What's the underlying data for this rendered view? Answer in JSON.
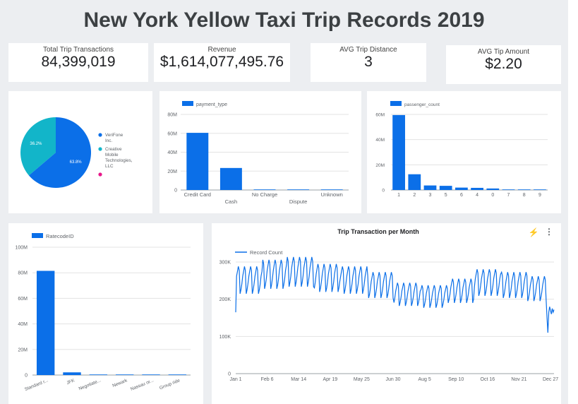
{
  "title": "New York Yellow Taxi Trip Records 2019",
  "kpis": [
    {
      "label": "Total Trip Transactions",
      "value": "84,399,019"
    },
    {
      "label": "Revenue",
      "value": "$1,614,077,495.76"
    },
    {
      "label": "AVG Trip Distance",
      "value": "3"
    },
    {
      "label": "AVG Tip Amount",
      "value": "$2.20"
    }
  ],
  "colors": {
    "blue": "#0b6fe8",
    "teal": "#12b5c9",
    "pink": "#e8178a",
    "grid": "#e3e3e3"
  },
  "chart_data": [
    {
      "type": "pie",
      "legend": "right",
      "slices": [
        {
          "name": "VeriFone Inc.",
          "value": 63.8,
          "label": "63.8%",
          "color": "#0b6fe8"
        },
        {
          "name": "Creative Mobile Technologies, LLC",
          "value": 36.2,
          "label": "36.2%",
          "color": "#12b5c9"
        },
        {
          "name": "",
          "value": 0,
          "label": "",
          "color": "#e8178a"
        }
      ]
    },
    {
      "type": "bar",
      "legend": "payment_type",
      "categories": [
        "Credit Card",
        "Cash",
        "No Charge",
        "Dispute",
        "Unknown"
      ],
      "values": [
        60500000,
        23300000,
        400000,
        150000,
        50000
      ],
      "ylim": [
        0,
        80000000
      ],
      "yticks": [
        {
          "v": 0,
          "label": "0"
        },
        {
          "v": 20000000,
          "label": "20M"
        },
        {
          "v": 40000000,
          "label": "40M"
        },
        {
          "v": 60000000,
          "label": "60M"
        },
        {
          "v": 80000000,
          "label": "80M"
        }
      ]
    },
    {
      "type": "bar",
      "legend": "passenger_count",
      "categories": [
        "1",
        "2",
        "3",
        "5",
        "6",
        "4",
        "0",
        "7",
        "8",
        "9"
      ],
      "values": [
        59500000,
        12500000,
        3600000,
        3300000,
        1900000,
        1700000,
        1200000,
        50000,
        30000,
        10000
      ],
      "ylim": [
        0,
        60000000
      ],
      "yticks": [
        {
          "v": 0,
          "label": "0"
        },
        {
          "v": 20000000,
          "label": "20M"
        },
        {
          "v": 40000000,
          "label": "40M"
        },
        {
          "v": 60000000,
          "label": "60M"
        }
      ]
    },
    {
      "type": "bar",
      "legend": "RatecodeID",
      "categories": [
        "Standard r...",
        "JFK",
        "Negotiate...",
        "Newark",
        "Nassau or...",
        "Group ride"
      ],
      "values": [
        81500000,
        2100000,
        300000,
        200000,
        100000,
        10000
      ],
      "ylim": [
        0,
        100000000
      ],
      "yticks": [
        {
          "v": 0,
          "label": "0"
        },
        {
          "v": 20000000,
          "label": "20M"
        },
        {
          "v": 40000000,
          "label": "40M"
        },
        {
          "v": 60000000,
          "label": "60M"
        },
        {
          "v": 80000000,
          "label": "80M"
        },
        {
          "v": 100000000,
          "label": "100M"
        }
      ]
    },
    {
      "type": "line",
      "title": "Trip Transaction per Month",
      "legend": "Record Count",
      "x_range": [
        "Jan 1",
        "Dec 31"
      ],
      "x_ticks": [
        "Jan 1",
        "Feb 6",
        "Mar 14",
        "Apr 19",
        "May 25",
        "Jun 30",
        "Aug 5",
        "Sep 10",
        "Oct 16",
        "Nov 21",
        "Dec 27"
      ],
      "ylim": [
        0,
        300000
      ],
      "yticks": [
        {
          "v": 0,
          "label": "0"
        },
        {
          "v": 100000,
          "label": "100K"
        },
        {
          "v": 200000,
          "label": "200K"
        },
        {
          "v": 300000,
          "label": "300K"
        }
      ],
      "monthly_level": [
        262000,
        278000,
        285000,
        268000,
        262000,
        248000,
        222000,
        216000,
        232000,
        255000,
        248000,
        238000
      ],
      "weekday_factor": [
        0.86,
        0.92,
        1.0,
        1.05,
        1.1,
        1.06,
        0.82
      ]
    }
  ]
}
